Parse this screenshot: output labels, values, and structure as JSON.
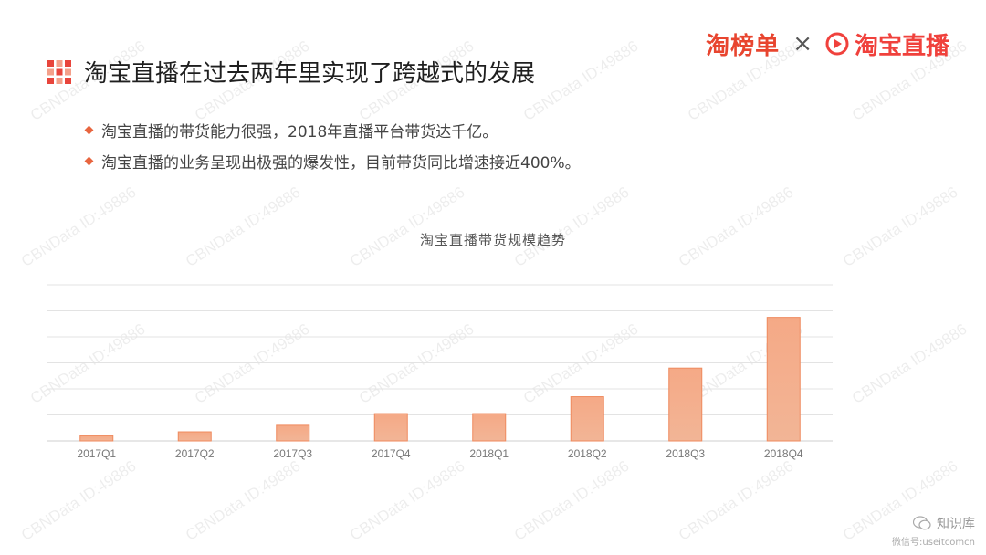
{
  "logos": {
    "left_text": "淘榜单",
    "separator": "×",
    "right_text": "淘宝直播",
    "accent_color": "#e8452f"
  },
  "title": "淘宝直播在过去两年里实现了跨越式的发展",
  "bullets": [
    "淘宝直播的带货能力很强，2018年直播平台带货达千亿。",
    "淘宝直播的业务呈现出极强的爆发性，目前带货同比增速接近400%。"
  ],
  "watermark_text": "CBNData ID:49886",
  "footer": {
    "main": "知识库",
    "sub": "微信号:useitcomcn"
  },
  "chart_data": {
    "type": "bar",
    "title": "淘宝直播带货规模趋势",
    "categories": [
      "2017Q1",
      "2017Q2",
      "2017Q3",
      "2017Q4",
      "2018Q1",
      "2018Q2",
      "2018Q3",
      "2018Q4"
    ],
    "values": [
      2,
      3.5,
      6,
      10.5,
      10.5,
      17,
      28,
      47.5
    ],
    "ylim": [
      0,
      60
    ],
    "grid": true,
    "bar_color_top": "#f5a986",
    "bar_color_bottom": "#f2b596",
    "bar_border": "#ef8a5e"
  }
}
